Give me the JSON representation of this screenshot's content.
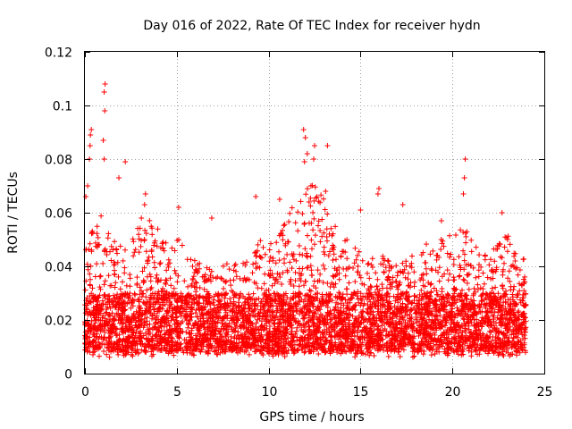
{
  "chart_data": {
    "type": "scatter",
    "title": "Day 016 of 2022, Rate Of TEC Index for receiver hydn",
    "xlabel": "GPS time / hours",
    "ylabel": "ROTI / TECUs",
    "xlim": [
      0,
      25
    ],
    "ylim": [
      0,
      0.12
    ],
    "x_ticks": [
      "0",
      "5",
      "10",
      "15",
      "20",
      "25"
    ],
    "y_ticks": [
      "0",
      "0.02",
      "0.04",
      "0.06",
      "0.08",
      "0.1",
      "0.12"
    ],
    "x_tick_values": [
      0,
      5,
      10,
      15,
      20,
      25
    ],
    "y_tick_values": [
      0,
      0.02,
      0.04,
      0.06,
      0.08,
      0.1,
      0.12
    ],
    "grid": true,
    "marker": "+",
    "color": "#ff0000",
    "series": [
      {
        "name": "ROTI",
        "profile_hours": [
          0,
          0.5,
          1,
          1.5,
          2,
          2.5,
          3,
          3.5,
          4,
          4.5,
          5,
          5.5,
          6,
          6.5,
          7,
          7.5,
          8,
          8.5,
          9,
          9.5,
          10,
          10.5,
          11,
          11.5,
          12,
          12.5,
          13,
          13.5,
          14,
          14.5,
          15,
          15.5,
          16,
          16.5,
          17,
          17.5,
          18,
          18.5,
          19,
          19.5,
          20,
          20.5,
          21,
          21.5,
          22,
          22.5,
          23,
          23.5,
          24
        ],
        "upper_envelope": [
          0.045,
          0.055,
          0.06,
          0.05,
          0.052,
          0.048,
          0.058,
          0.06,
          0.055,
          0.05,
          0.052,
          0.045,
          0.042,
          0.04,
          0.038,
          0.04,
          0.042,
          0.04,
          0.045,
          0.05,
          0.048,
          0.05,
          0.058,
          0.065,
          0.075,
          0.07,
          0.065,
          0.058,
          0.052,
          0.048,
          0.045,
          0.042,
          0.045,
          0.042,
          0.04,
          0.042,
          0.045,
          0.048,
          0.05,
          0.05,
          0.052,
          0.058,
          0.05,
          0.045,
          0.045,
          0.048,
          0.052,
          0.045,
          0.042
        ],
        "outliers": [
          {
            "x": 0.35,
            "y": 0.091
          },
          {
            "x": 0.3,
            "y": 0.089
          },
          {
            "x": 0.28,
            "y": 0.085
          },
          {
            "x": 0.25,
            "y": 0.08
          },
          {
            "x": 0.05,
            "y": 0.066
          },
          {
            "x": 0.15,
            "y": 0.07
          },
          {
            "x": 1.1,
            "y": 0.108
          },
          {
            "x": 1.05,
            "y": 0.105
          },
          {
            "x": 1.08,
            "y": 0.098
          },
          {
            "x": 1.0,
            "y": 0.087
          },
          {
            "x": 1.05,
            "y": 0.08
          },
          {
            "x": 2.2,
            "y": 0.079
          },
          {
            "x": 1.85,
            "y": 0.073
          },
          {
            "x": 3.3,
            "y": 0.067
          },
          {
            "x": 3.25,
            "y": 0.063
          },
          {
            "x": 5.1,
            "y": 0.062
          },
          {
            "x": 6.9,
            "y": 0.058
          },
          {
            "x": 9.3,
            "y": 0.066
          },
          {
            "x": 11.9,
            "y": 0.091
          },
          {
            "x": 12.0,
            "y": 0.088
          },
          {
            "x": 12.1,
            "y": 0.082
          },
          {
            "x": 11.95,
            "y": 0.079
          },
          {
            "x": 12.5,
            "y": 0.085
          },
          {
            "x": 12.45,
            "y": 0.08
          },
          {
            "x": 13.2,
            "y": 0.085
          },
          {
            "x": 13.1,
            "y": 0.068
          },
          {
            "x": 12.3,
            "y": 0.07
          },
          {
            "x": 12.2,
            "y": 0.064
          },
          {
            "x": 16.0,
            "y": 0.069
          },
          {
            "x": 15.95,
            "y": 0.067
          },
          {
            "x": 17.3,
            "y": 0.063
          },
          {
            "x": 19.4,
            "y": 0.057
          },
          {
            "x": 20.7,
            "y": 0.08
          },
          {
            "x": 20.65,
            "y": 0.073
          },
          {
            "x": 20.6,
            "y": 0.067
          },
          {
            "x": 22.7,
            "y": 0.06
          },
          {
            "x": 15.0,
            "y": 0.061
          },
          {
            "x": 10.6,
            "y": 0.065
          }
        ],
        "seed": 16
      }
    ]
  }
}
